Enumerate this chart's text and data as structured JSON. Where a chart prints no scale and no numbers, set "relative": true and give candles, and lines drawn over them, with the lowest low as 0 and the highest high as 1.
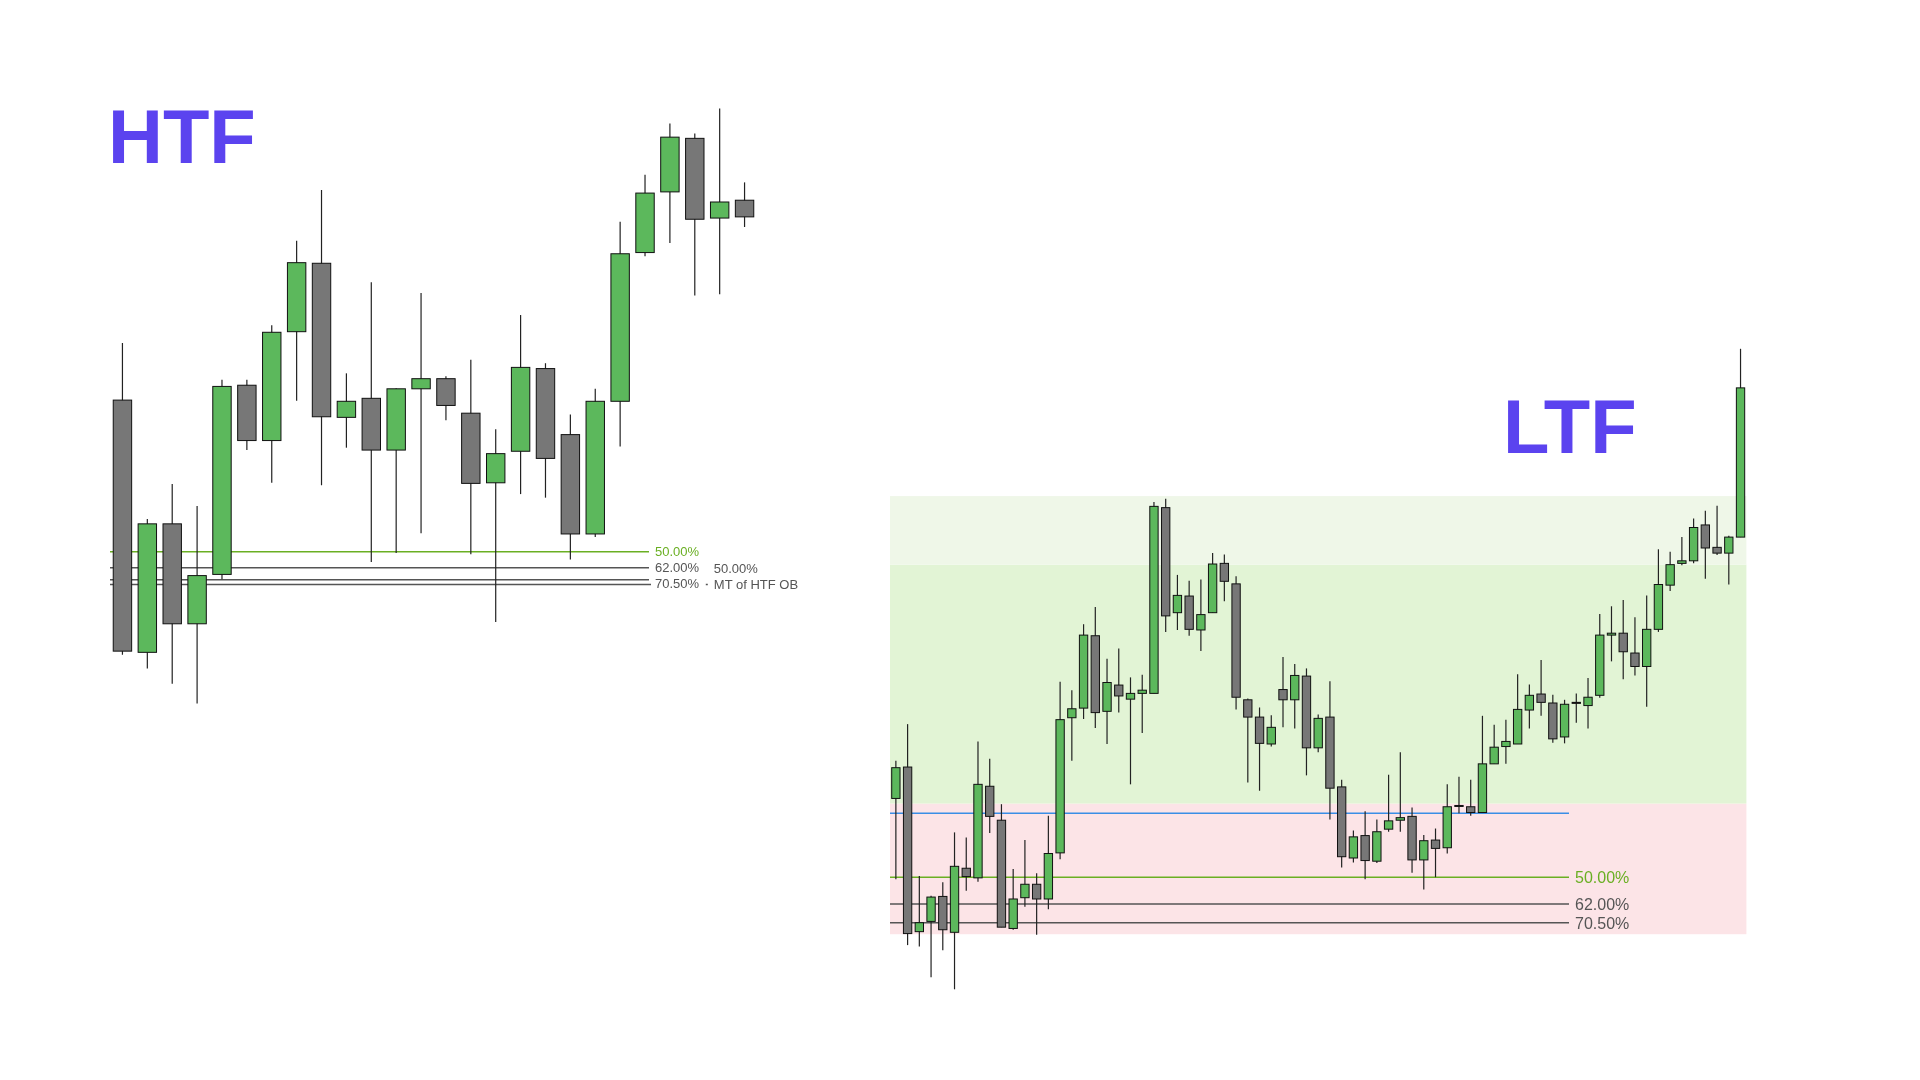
{
  "chart_data": [
    {
      "type": "candlestick",
      "title": "HTF",
      "relative": true,
      "categories": [
        null,
        null,
        null,
        null,
        null,
        null,
        null,
        null,
        null,
        null,
        null,
        null,
        null,
        null,
        null,
        null,
        null,
        null,
        null,
        null,
        null,
        null,
        null,
        null,
        null,
        null
      ],
      "ohlc": [
        [
          0.51,
          0.606,
          0.082,
          0.088
        ],
        [
          0.086,
          0.31,
          0.059,
          0.302
        ],
        [
          0.302,
          0.369,
          0.033,
          0.134
        ],
        [
          0.134,
          0.332,
          0,
          0.215
        ],
        [
          0.217,
          0.544,
          0.209,
          0.533
        ],
        [
          0.535,
          0.544,
          0.426,
          0.442
        ],
        [
          0.442,
          0.636,
          0.371,
          0.624
        ],
        [
          0.625,
          0.778,
          0.509,
          0.741
        ],
        [
          0.74,
          0.863,
          0.367,
          0.482
        ],
        [
          0.481,
          0.555,
          0.43,
          0.508
        ],
        [
          0.513,
          0.708,
          0.238,
          0.426
        ],
        [
          0.426,
          0.53,
          0.253,
          0.529
        ],
        [
          0.529,
          0.69,
          0.286,
          0.546
        ],
        [
          0.546,
          0.55,
          0.476,
          0.501
        ],
        [
          0.488,
          0.578,
          0.251,
          0.37
        ],
        [
          0.371,
          0.461,
          0.137,
          0.42
        ],
        [
          0.424,
          0.653,
          0.352,
          0.565
        ],
        [
          0.563,
          0.572,
          0.346,
          0.412
        ],
        [
          0.452,
          0.486,
          0.242,
          0.285
        ],
        [
          0.285,
          0.529,
          0.28,
          0.508
        ],
        [
          0.508,
          0.81,
          0.432,
          0.756
        ],
        [
          0.758,
          0.889,
          0.752,
          0.858
        ],
        [
          0.86,
          0.975,
          0.774,
          0.952
        ],
        [
          0.95,
          0.958,
          0.686,
          0.814
        ],
        [
          0.816,
          1,
          0.688,
          0.843
        ],
        [
          0.846,
          0.876,
          0.801,
          0.818
        ]
      ],
      "colors": [
        "#777777",
        "#5cb85c",
        "#777777",
        "#5cb85c",
        "#5cb85c",
        "#777777",
        "#5cb85c",
        "#5cb85c",
        "#777777",
        "#5cb85c",
        "#777777",
        "#5cb85c",
        "#5cb85c",
        "#777777",
        "#777777",
        "#5cb85c",
        "#5cb85c",
        "#777777",
        "#777777",
        "#5cb85c",
        "#5cb85c",
        "#5cb85c",
        "#5cb85c",
        "#777777",
        "#5cb85c",
        "#777777"
      ],
      "ref_lines": [
        {
          "axis": "y",
          "value": 0.255,
          "color": "#6aaf23"
        },
        {
          "axis": "y",
          "value": 0.228,
          "color": "#555555"
        },
        {
          "axis": "y",
          "value": 0.208,
          "color": "#555555"
        },
        {
          "axis": "y",
          "value": 0.2,
          "color": "#555555"
        }
      ],
      "annotations": [
        "50.00%",
        "62.00%",
        "70.50%",
        "50.00%\nMT of HTF OB"
      ]
    },
    {
      "type": "candlestick",
      "title": "LTF",
      "relative": true,
      "categories": [
        null,
        null,
        null,
        null,
        null,
        null,
        null,
        null,
        null,
        null,
        null,
        null,
        null,
        null,
        null,
        null,
        null,
        null,
        null,
        null,
        null,
        null,
        null,
        null,
        null,
        null,
        null,
        null,
        null,
        null,
        null,
        null,
        null,
        null,
        null,
        null,
        null,
        null,
        null,
        null,
        null,
        null,
        null,
        null,
        null,
        null,
        null,
        null,
        null,
        null,
        null,
        null,
        null,
        null,
        null,
        null,
        null,
        null,
        null,
        null,
        null,
        null,
        null,
        null,
        null,
        null,
        null,
        null,
        null,
        null,
        null,
        null,
        null
      ],
      "ohlc": [
        [
          0.298,
          0.357,
          0.172,
          0.346
        ],
        [
          0.347,
          0.414,
          0.069,
          0.087
        ],
        [
          0.09,
          0.177,
          0.067,
          0.104
        ],
        [
          0.106,
          0.146,
          0.019,
          0.144
        ],
        [
          0.145,
          0.167,
          0.061,
          0.093
        ],
        [
          0.089,
          0.245,
          0,
          0.192
        ],
        [
          0.189,
          0.237,
          0.154,
          0.176
        ],
        [
          0.174,
          0.387,
          0.168,
          0.32
        ],
        [
          0.317,
          0.36,
          0.244,
          0.27
        ],
        [
          0.264,
          0.289,
          0.097,
          0.097
        ],
        [
          0.095,
          0.188,
          0.093,
          0.141
        ],
        [
          0.143,
          0.233,
          0.129,
          0.164
        ],
        [
          0.164,
          0.181,
          0.085,
          0.141
        ],
        [
          0.141,
          0.271,
          0.125,
          0.212
        ],
        [
          0.213,
          0.48,
          0.203,
          0.421
        ],
        [
          0.424,
          0.467,
          0.357,
          0.438
        ],
        [
          0.439,
          0.57,
          0.422,
          0.553
        ],
        [
          0.552,
          0.597,
          0.408,
          0.432
        ],
        [
          0.434,
          0.516,
          0.383,
          0.479
        ],
        [
          0.475,
          0.532,
          0.432,
          0.458
        ],
        [
          0.453,
          0.487,
          0.32,
          0.462
        ],
        [
          0.462,
          0.491,
          0.4,
          0.467
        ],
        [
          0.462,
          0.761,
          0.462,
          0.754
        ],
        [
          0.752,
          0.766,
          0.558,
          0.583
        ],
        [
          0.588,
          0.647,
          0.561,
          0.615
        ],
        [
          0.614,
          0.638,
          0.552,
          0.562
        ],
        [
          0.561,
          0.64,
          0.528,
          0.585
        ],
        [
          0.588,
          0.681,
          0.588,
          0.664
        ],
        [
          0.665,
          0.679,
          0.606,
          0.637
        ],
        [
          0.633,
          0.645,
          0.437,
          0.456
        ],
        [
          0.452,
          0.454,
          0.323,
          0.425
        ],
        [
          0.425,
          0.44,
          0.31,
          0.384
        ],
        [
          0.383,
          0.428,
          0.379,
          0.409
        ],
        [
          0.468,
          0.519,
          0.409,
          0.452
        ],
        [
          0.452,
          0.508,
          0.407,
          0.49
        ],
        [
          0.489,
          0.501,
          0.334,
          0.377
        ],
        [
          0.377,
          0.429,
          0.37,
          0.423
        ],
        [
          0.425,
          0.481,
          0.265,
          0.314
        ],
        [
          0.316,
          0.327,
          0.19,
          0.207
        ],
        [
          0.205,
          0.248,
          0.198,
          0.238
        ],
        [
          0.24,
          0.278,
          0.172,
          0.201
        ],
        [
          0.2,
          0.265,
          0.197,
          0.246
        ],
        [
          0.25,
          0.335,
          0.246,
          0.263
        ],
        [
          0.264,
          0.37,
          0.246,
          0.268
        ],
        [
          0.27,
          0.284,
          0.182,
          0.202
        ],
        [
          0.202,
          0.241,
          0.156,
          0.232
        ],
        [
          0.233,
          0.251,
          0.175,
          0.22
        ],
        [
          0.221,
          0.32,
          0.212,
          0.285
        ],
        [
          0.287,
          0.332,
          0.275,
          0.287
        ],
        [
          0.285,
          0.327,
          0.271,
          0.276
        ],
        [
          0.276,
          0.427,
          0.276,
          0.352
        ],
        [
          0.352,
          0.413,
          0.352,
          0.378
        ],
        [
          0.379,
          0.421,
          0.352,
          0.387
        ],
        [
          0.383,
          0.492,
          0.383,
          0.437
        ],
        [
          0.436,
          0.476,
          0.407,
          0.459
        ],
        [
          0.461,
          0.514,
          0.427,
          0.448
        ],
        [
          0.447,
          0.46,
          0.385,
          0.391
        ],
        [
          0.394,
          0.452,
          0.384,
          0.445
        ],
        [
          0.448,
          0.462,
          0.416,
          0.448
        ],
        [
          0.443,
          0.486,
          0.407,
          0.456
        ],
        [
          0.459,
          0.586,
          0.455,
          0.553
        ],
        [
          0.553,
          0.598,
          0.512,
          0.556
        ],
        [
          0.556,
          0.608,
          0.484,
          0.527
        ],
        [
          0.525,
          0.581,
          0.49,
          0.504
        ],
        [
          0.504,
          0.615,
          0.441,
          0.562
        ],
        [
          0.562,
          0.687,
          0.558,
          0.632
        ],
        [
          0.631,
          0.683,
          0.622,
          0.663
        ],
        [
          0.665,
          0.706,
          0.662,
          0.669
        ],
        [
          0.669,
          0.735,
          0.665,
          0.721
        ],
        [
          0.725,
          0.747,
          0.641,
          0.689
        ],
        [
          0.69,
          0.755,
          0.678,
          0.681
        ],
        [
          0.681,
          0.708,
          0.632,
          0.706
        ],
        [
          0.706,
          1,
          0.706,
          0.939
        ]
      ],
      "colors": [
        "#5cb85c",
        "#777777",
        "#5cb85c",
        "#5cb85c",
        "#777777",
        "#5cb85c",
        "#777777",
        "#5cb85c",
        "#777777",
        "#777777",
        "#5cb85c",
        "#5cb85c",
        "#777777",
        "#5cb85c",
        "#5cb85c",
        "#5cb85c",
        "#5cb85c",
        "#777777",
        "#5cb85c",
        "#777777",
        "#5cb85c",
        "#5cb85c",
        "#5cb85c",
        "#777777",
        "#5cb85c",
        "#777777",
        "#5cb85c",
        "#5cb85c",
        "#777777",
        "#777777",
        "#777777",
        "#777777",
        "#5cb85c",
        "#777777",
        "#5cb85c",
        "#777777",
        "#5cb85c",
        "#777777",
        "#777777",
        "#5cb85c",
        "#777777",
        "#5cb85c",
        "#5cb85c",
        "#5cb85c",
        "#777777",
        "#5cb85c",
        "#777777",
        "#5cb85c",
        "#777777",
        "#777777",
        "#5cb85c",
        "#5cb85c",
        "#5cb85c",
        "#5cb85c",
        "#5cb85c",
        "#777777",
        "#777777",
        "#5cb85c",
        "#777777",
        "#5cb85c",
        "#5cb85c",
        "#5cb85c",
        "#777777",
        "#777777",
        "#5cb85c",
        "#5cb85c",
        "#5cb85c",
        "#5cb85c",
        "#5cb85c",
        "#777777",
        "#777777",
        "#5cb85c",
        "#5cb85c"
      ],
      "bands": [
        {
          "axis": "y",
          "from": 0.086,
          "to": 0.29,
          "color": "#fce4e7"
        },
        {
          "axis": "y",
          "from": 0.29,
          "to": 0.663,
          "color": "#e2f4d5"
        },
        {
          "axis": "y",
          "from": 0.663,
          "to": 0.77,
          "color": "#eff7e8"
        }
      ],
      "ref_lines": [
        {
          "axis": "y",
          "value": 0.175,
          "color": "#6aaf23"
        },
        {
          "axis": "y",
          "value": 0.133,
          "color": "#555555"
        },
        {
          "axis": "y",
          "value": 0.104,
          "color": "#555555"
        },
        {
          "axis": "y",
          "value": 0.275,
          "color": "#3a8ee6"
        }
      ],
      "annotations": [
        "50.00%",
        "62.00%",
        "70.50%"
      ]
    }
  ]
}
